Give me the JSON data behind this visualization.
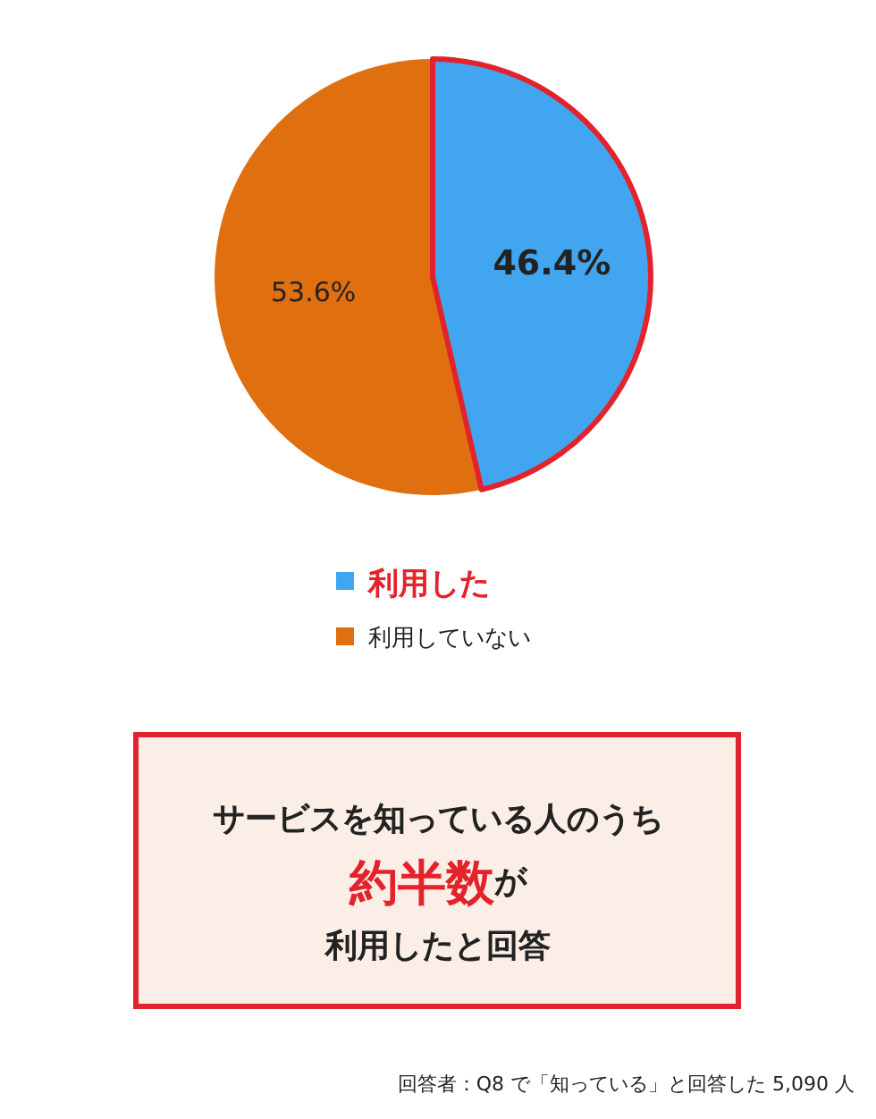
{
  "chart_data": {
    "type": "pie",
    "categories": [
      "利用した",
      "利用していない"
    ],
    "values": [
      46.4,
      53.6
    ],
    "colors": [
      "#42a5ef",
      "#e0700f"
    ],
    "value_labels": [
      "46.4%",
      "53.6%"
    ],
    "legend": "bottom",
    "annotations": [
      "サービスを知っている人のうち",
      "約半数",
      "が",
      "利用したと回答",
      "回答者：Q8 で「知っている」と回答した 5,090 人"
    ]
  }
}
